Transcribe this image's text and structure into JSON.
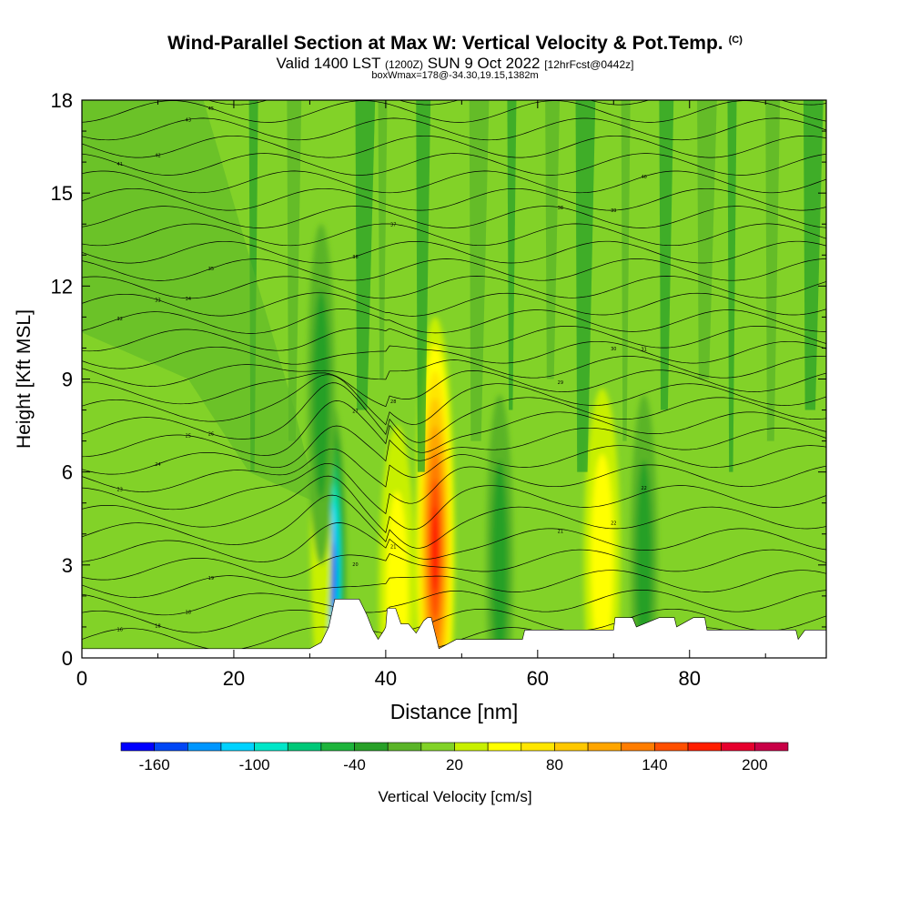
{
  "header": {
    "title": "Wind-Parallel Section at Max W: Vertical Velocity & Pot.Temp.",
    "copyright": "(C)",
    "valid_prefix": "Valid 1400 LST",
    "valid_utc": "(1200Z)",
    "valid_date": "SUN 9 Oct 2022",
    "forecast": "[12hrFcst@0442z]",
    "boxmax": "boxWmax=178@-34.30,19.15,1382m"
  },
  "chart_data": {
    "type": "heatmap",
    "title": "Wind-Parallel Section at Max W: Vertical Velocity & Pot.Temp.",
    "xlabel": "Distance [nm]",
    "ylabel": "Height [Kft MSL]",
    "xlim": [
      0,
      98
    ],
    "ylim": [
      0,
      18
    ],
    "x_ticks": [
      0,
      20,
      40,
      60,
      80
    ],
    "y_ticks": [
      0,
      3,
      6,
      9,
      12,
      15,
      18
    ],
    "colorbar": {
      "label": "Vertical Velocity [cm/s]",
      "tick_labels": [
        "-160",
        "-100",
        "-40",
        "20",
        "80",
        "140",
        "200"
      ],
      "levels": [
        -180,
        -160,
        -140,
        -120,
        -100,
        -80,
        -60,
        -40,
        -20,
        0,
        20,
        40,
        60,
        80,
        100,
        120,
        140,
        160,
        180,
        200,
        220
      ],
      "colors": [
        "#0000ff",
        "#0046f5",
        "#0096ff",
        "#00d2ff",
        "#00e6c8",
        "#00c878",
        "#1eb43c",
        "#28a028",
        "#5ab428",
        "#82d228",
        "#c8f000",
        "#ffff00",
        "#ffe600",
        "#ffc800",
        "#ffa500",
        "#ff7d00",
        "#ff5000",
        "#ff1e00",
        "#e6002d",
        "#c80046"
      ]
    },
    "background_velocity_cm_s": 10,
    "features": [
      {
        "name": "downdraft",
        "x_nm": 33,
        "height_kft": 2.7,
        "vertical_velocity_cm_s": -150
      },
      {
        "name": "updraft max",
        "x_nm": 46.5,
        "height_kft": 3.5,
        "vertical_velocity_cm_s": 178
      },
      {
        "name": "updraft",
        "x_nm": 41.5,
        "height_kft": 2.0,
        "vertical_velocity_cm_s": 60
      },
      {
        "name": "updraft",
        "x_nm": 68.5,
        "height_kft": 3.2,
        "vertical_velocity_cm_s": 55
      },
      {
        "name": "weak updraft",
        "x_nm": 31.5,
        "height_kft": 4.0,
        "vertical_velocity_cm_s": 35
      },
      {
        "name": "downdraft",
        "x_nm": 55,
        "height_kft": 3.0,
        "vertical_velocity_cm_s": -35
      },
      {
        "name": "downdraft",
        "x_nm": 74,
        "height_kft": 3.0,
        "vertical_velocity_cm_s": -25
      },
      {
        "name": "downdraft",
        "x_nm": 31.5,
        "height_kft": 8.5,
        "vertical_velocity_cm_s": -30
      }
    ],
    "terrain_kft": {
      "x": [
        0,
        30,
        31.5,
        32.5,
        33.3,
        36.5,
        37.5,
        38.3,
        39,
        39.8,
        40,
        40.2,
        41.3,
        42,
        43,
        44,
        45,
        45.5,
        46,
        47,
        49.3,
        58,
        58.3,
        70,
        70.2,
        72.5,
        73,
        76,
        78,
        78.3,
        80.5,
        82,
        82.3,
        94,
        94.3,
        95.2,
        98
      ],
      "height": [
        0.3,
        0.3,
        0.5,
        1.0,
        1.9,
        1.9,
        1.4,
        0.9,
        0.6,
        0.9,
        1.0,
        1.6,
        1.6,
        1.1,
        1.1,
        0.8,
        1.2,
        1.3,
        1.3,
        0.3,
        0.6,
        0.6,
        0.9,
        0.9,
        1.3,
        1.3,
        1.0,
        1.3,
        1.3,
        1.0,
        1.3,
        1.3,
        0.9,
        0.9,
        0.6,
        0.9,
        0.9
      ]
    },
    "potential_temperature_contours": {
      "count": 32,
      "units": "K",
      "labels": [
        "16",
        "18",
        "18",
        "19",
        "20",
        "21",
        "21",
        "22",
        "22",
        "23",
        "24",
        "25",
        "26",
        "27",
        "28",
        "29",
        "30",
        "31",
        "32",
        "33",
        "34",
        "35",
        "36",
        "37",
        "38",
        "39",
        "40",
        "41",
        "42",
        "43",
        "45",
        "46"
      ]
    }
  }
}
